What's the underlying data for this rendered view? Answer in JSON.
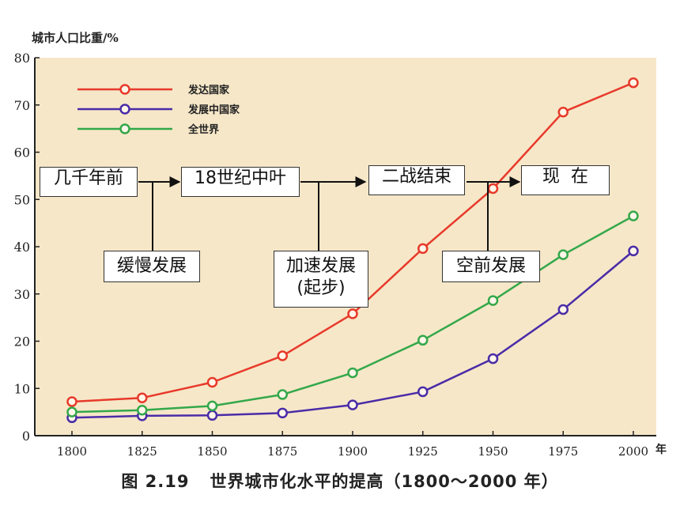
{
  "chart_data": {
    "type": "line",
    "y_axis_label": "城市人口比重/%",
    "x_unit": "年",
    "x": [
      1800,
      1825,
      1850,
      1875,
      1900,
      1925,
      1950,
      1975,
      2000
    ],
    "xlim": [
      1800,
      2000
    ],
    "ylim": [
      0,
      80
    ],
    "yticks": [
      0,
      10,
      20,
      30,
      40,
      50,
      60,
      70,
      80
    ],
    "grid": false,
    "legend_position": "top-left",
    "series": [
      {
        "name": "发达国家",
        "color": "#e8392a",
        "values": [
          7.2,
          8.0,
          11.3,
          16.9,
          25.8,
          39.6,
          52.3,
          68.5,
          74.7
        ]
      },
      {
        "name": "发展中国家",
        "color": "#4a2ca8",
        "values": [
          3.8,
          4.2,
          4.3,
          4.8,
          6.5,
          9.3,
          16.3,
          26.7,
          39.1
        ]
      },
      {
        "name": "全世界",
        "color": "#33a84a",
        "values": [
          5.0,
          5.4,
          6.3,
          8.7,
          13.3,
          20.2,
          28.6,
          38.3,
          46.5
        ]
      }
    ],
    "caption_figure": "图 2.19",
    "caption_title": "世界城市化水平的提高（1800～2000 年）"
  },
  "timeline": {
    "stages": [
      "几千年前",
      "18世纪中叶",
      "二战结束",
      "现  在"
    ],
    "annotations": [
      "缓慢发展",
      "加速发展\n(起步)",
      "空前发展"
    ]
  },
  "colors": {
    "plot_background": "#f6e7c8",
    "axis": "#222222"
  }
}
